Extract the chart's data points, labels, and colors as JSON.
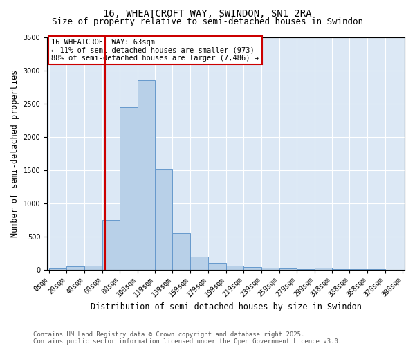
{
  "title1": "16, WHEATCROFT WAY, SWINDON, SN1 2RA",
  "title2": "Size of property relative to semi-detached houses in Swindon",
  "xlabel": "Distribution of semi-detached houses by size in Swindon",
  "ylabel": "Number of semi-detached properties",
  "footnote1": "Contains HM Land Registry data © Crown copyright and database right 2025.",
  "footnote2": "Contains public sector information licensed under the Open Government Licence v3.0.",
  "annotation_title": "16 WHEATCROFT WAY: 63sqm",
  "annotation_line1": "← 11% of semi-detached houses are smaller (973)",
  "annotation_line2": "88% of semi-detached houses are larger (7,486) →",
  "property_size": 63,
  "bin_starts": [
    0,
    20,
    40,
    60,
    80,
    100,
    119,
    139,
    159,
    179,
    199,
    219,
    239,
    259,
    279,
    299,
    318,
    338,
    358,
    378
  ],
  "bin_widths": [
    20,
    20,
    20,
    20,
    20,
    19,
    20,
    20,
    20,
    20,
    20,
    20,
    20,
    20,
    20,
    19,
    20,
    20,
    20,
    20
  ],
  "bin_labels": [
    "0sqm",
    "20sqm",
    "40sqm",
    "60sqm",
    "80sqm",
    "100sqm",
    "119sqm",
    "139sqm",
    "159sqm",
    "179sqm",
    "199sqm",
    "219sqm",
    "239sqm",
    "259sqm",
    "279sqm",
    "299sqm",
    "318sqm",
    "338sqm",
    "358sqm",
    "378sqm",
    "398sqm"
  ],
  "bar_heights": [
    20,
    50,
    60,
    750,
    2450,
    2850,
    1520,
    550,
    195,
    100,
    60,
    40,
    25,
    20,
    10,
    25,
    5,
    5,
    3,
    2
  ],
  "bar_color": "#b8d0e8",
  "bar_edge_color": "#6699cc",
  "red_line_color": "#cc0000",
  "annotation_box_color": "#cc0000",
  "ylim": [
    0,
    3500
  ],
  "yticks": [
    0,
    500,
    1000,
    1500,
    2000,
    2500,
    3000,
    3500
  ],
  "xlim_left": -2,
  "xlim_right": 400,
  "background_color": "#dce8f5",
  "grid_color": "#ffffff",
  "title1_fontsize": 10,
  "title2_fontsize": 9,
  "axis_label_fontsize": 8.5,
  "tick_fontsize": 7,
  "annotation_fontsize": 7.5,
  "footnote_fontsize": 6.5
}
